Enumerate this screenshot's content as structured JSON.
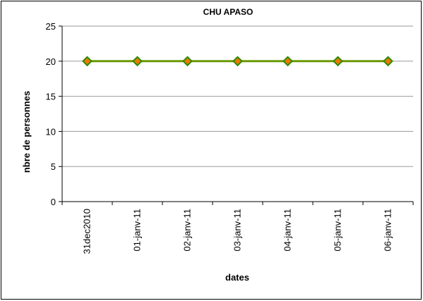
{
  "chart_data": {
    "type": "line",
    "title": "CHU APASO",
    "xlabel": "dates",
    "ylabel": "nbre de personnes",
    "categories": [
      "31dec2010",
      "01-janv-11",
      "02-janv-11",
      "03-janv-11",
      "04-janv-11",
      "05-janv-11",
      "06-janv-11"
    ],
    "series": [
      {
        "values": [
          20,
          20,
          20,
          20,
          20,
          20,
          20
        ],
        "line_color": "#6a9a00",
        "marker_color": "#f07800",
        "marker_edge_color": "#2a8a00",
        "marker": "diamond"
      }
    ],
    "ylim": [
      0,
      25
    ],
    "yticks": [
      "0",
      "5",
      "10",
      "15",
      "20",
      "25"
    ],
    "grid": true,
    "legend": false
  }
}
